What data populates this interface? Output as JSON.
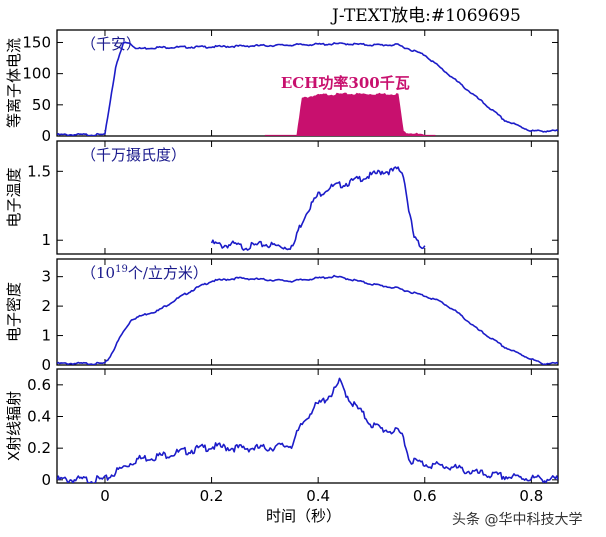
{
  "title": "J-TEXT放电:#1069695",
  "watermark": "头条 @华中科技大学",
  "colors": {
    "trace": "#1c1cc8",
    "ech": "#c8106e",
    "axis": "#000000"
  },
  "xaxis": {
    "label": "时间（秒）",
    "range": [
      -0.09,
      0.85
    ],
    "ticks": [
      "0",
      "0.2",
      "0.4",
      "0.6",
      "0.8"
    ]
  },
  "chart_data": [
    {
      "type": "line",
      "ylabel": "等离子体电流",
      "annotation": "（千安）",
      "ylim": [
        0,
        170
      ],
      "yticks": [
        "0",
        "50",
        "100",
        "150"
      ],
      "series": [
        {
          "x": [
            -0.09,
            0.0,
            0.005,
            0.02,
            0.035,
            0.045,
            0.06,
            0.1,
            0.2,
            0.3,
            0.4,
            0.45,
            0.5,
            0.55,
            0.6,
            0.65,
            0.7,
            0.75,
            0.8,
            0.85
          ],
          "y": [
            2,
            2,
            30,
            110,
            150,
            150,
            140,
            142,
            143,
            145,
            147,
            148,
            146,
            146,
            130,
            95,
            60,
            25,
            8,
            8
          ]
        }
      ],
      "ech": {
        "label": "ECH功率300千瓦",
        "x": [
          0.36,
          0.37,
          0.38,
          0.39,
          0.41,
          0.45,
          0.5,
          0.55,
          0.56,
          0.58,
          0.6
        ],
        "y": [
          0,
          60,
          62,
          64,
          66,
          67,
          67,
          67,
          6,
          4,
          0
        ]
      }
    },
    {
      "type": "line",
      "ylabel": "电子温度",
      "annotation": "（千万摄氏度）",
      "ylim": [
        0.9,
        1.72
      ],
      "yticks": [
        "1",
        "1.5"
      ],
      "series": [
        {
          "x": [
            0.2,
            0.22,
            0.24,
            0.26,
            0.28,
            0.3,
            0.32,
            0.34,
            0.355,
            0.36,
            0.38,
            0.4,
            0.42,
            0.44,
            0.46,
            0.48,
            0.5,
            0.52,
            0.54,
            0.55,
            0.56,
            0.57,
            0.58,
            0.59,
            0.6
          ],
          "y": [
            0.98,
            0.96,
            0.97,
            0.95,
            0.96,
            0.97,
            0.96,
            0.95,
            0.96,
            1.05,
            1.22,
            1.33,
            1.38,
            1.4,
            1.42,
            1.45,
            1.47,
            1.5,
            1.5,
            1.52,
            1.48,
            1.22,
            1.02,
            0.96,
            0.96
          ]
        }
      ]
    },
    {
      "type": "line",
      "ylabel": "电子密度",
      "annotation_main": "（10",
      "annotation_sup": "19",
      "annotation_tail": "个/立方米）",
      "ylim": [
        0,
        3.6
      ],
      "yticks": [
        "0",
        "1",
        "2",
        "3"
      ],
      "series": [
        {
          "x": [
            -0.09,
            0.0,
            0.01,
            0.03,
            0.05,
            0.08,
            0.1,
            0.14,
            0.17,
            0.2,
            0.25,
            0.3,
            0.35,
            0.4,
            0.43,
            0.45,
            0.5,
            0.55,
            0.6,
            0.63,
            0.66,
            0.7,
            0.75,
            0.8,
            0.82,
            0.85
          ],
          "y": [
            0.05,
            0.05,
            0.3,
            1.0,
            1.55,
            1.75,
            1.85,
            2.3,
            2.6,
            2.85,
            2.95,
            2.9,
            2.85,
            2.95,
            3.0,
            2.95,
            2.75,
            2.6,
            2.35,
            2.15,
            1.8,
            1.2,
            0.6,
            0.2,
            0.05,
            0.05
          ]
        }
      ]
    },
    {
      "type": "line",
      "ylabel": "X射线辐射",
      "ylim": [
        -0.02,
        0.7
      ],
      "yticks": [
        "0",
        "0.2",
        "0.4",
        "0.6"
      ],
      "series": [
        {
          "x": [
            -0.09,
            0.0,
            0.02,
            0.04,
            0.06,
            0.1,
            0.15,
            0.2,
            0.25,
            0.3,
            0.35,
            0.37,
            0.39,
            0.41,
            0.43,
            0.44,
            0.46,
            0.48,
            0.5,
            0.52,
            0.55,
            0.56,
            0.57,
            0.6,
            0.65,
            0.7,
            0.75,
            0.8,
            0.85
          ],
          "y": [
            0.0,
            0.0,
            0.05,
            0.09,
            0.13,
            0.15,
            0.18,
            0.21,
            0.2,
            0.2,
            0.22,
            0.35,
            0.45,
            0.5,
            0.56,
            0.62,
            0.5,
            0.43,
            0.35,
            0.32,
            0.3,
            0.28,
            0.13,
            0.1,
            0.08,
            0.04,
            0.02,
            0.01,
            0.0
          ]
        }
      ]
    }
  ]
}
